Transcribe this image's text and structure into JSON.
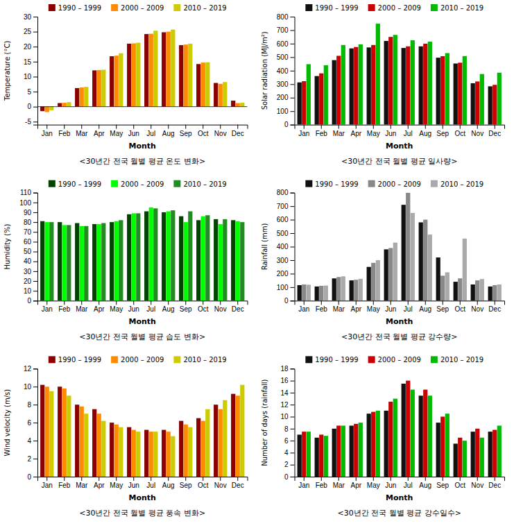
{
  "chart_data": [
    {
      "type": "bar",
      "title": "<30년간 전국 월별 평균 온도 변화>",
      "x_label": "Month",
      "y_label": "Temperature (°C)",
      "categories": [
        "Jan",
        "Feb",
        "Mar",
        "Apr",
        "May",
        "Jun",
        "Jul",
        "Aug",
        "Sep",
        "Oct",
        "Nov",
        "Dec"
      ],
      "series": [
        {
          "name": "1990 – 1999",
          "color": "#8B0000",
          "values": [
            -1.5,
            1.2,
            6.2,
            12.1,
            16.8,
            21.0,
            24.2,
            24.8,
            20.5,
            14.2,
            7.9,
            2.0
          ]
        },
        {
          "name": "2000 – 2009",
          "color": "#FF8C00",
          "values": [
            -1.8,
            1.3,
            6.4,
            12.2,
            17.0,
            21.1,
            24.3,
            25.0,
            20.7,
            14.7,
            7.6,
            1.2
          ]
        },
        {
          "name": "2010 – 2019",
          "color": "#CCCC00",
          "values": [
            -1.2,
            1.5,
            6.6,
            12.3,
            17.8,
            21.3,
            25.3,
            25.7,
            21.0,
            14.8,
            8.2,
            1.3
          ]
        }
      ],
      "ylim": [
        -6,
        30
      ],
      "yticks": [
        -5,
        0,
        5,
        10,
        15,
        20,
        25,
        30
      ],
      "grid": false,
      "legend": "top"
    },
    {
      "type": "bar",
      "title": "<30년간 전국 월별 평균 일사량>",
      "x_label": "Month",
      "y_label": "Solar radiation (MJ/m²)",
      "categories": [
        "Jan",
        "Feb",
        "Mar",
        "Apr",
        "May",
        "Jun",
        "Jul",
        "Aug",
        "Sep",
        "Oct",
        "Nov",
        "Dec"
      ],
      "series": [
        {
          "name": "1990 – 1999",
          "color": "#111111",
          "values": [
            313,
            360,
            478,
            565,
            572,
            620,
            568,
            580,
            496,
            453,
            307,
            284
          ]
        },
        {
          "name": "2000 – 2009",
          "color": "#CC0000",
          "values": [
            322,
            380,
            510,
            575,
            590,
            650,
            580,
            600,
            507,
            459,
            320,
            295
          ]
        },
        {
          "name": "2010 – 2019",
          "color": "#00BB00",
          "values": [
            448,
            440,
            590,
            595,
            748,
            665,
            625,
            615,
            530,
            508,
            375,
            385
          ]
        }
      ],
      "ylim": [
        0,
        800
      ],
      "yticks": [
        0,
        100,
        200,
        300,
        400,
        500,
        600,
        700,
        800
      ],
      "grid": false,
      "legend": "top"
    },
    {
      "type": "bar",
      "title": "<30년간 전국 월별 평균 습도 변화>",
      "x_label": "Month",
      "y_label": "Humidity (%)",
      "categories": [
        "Jan",
        "Feb",
        "Mar",
        "Apr",
        "May",
        "Jun",
        "Jul",
        "Aug",
        "Sep",
        "Oct",
        "Nov",
        "Dec"
      ],
      "series": [
        {
          "name": "1990 – 1999",
          "color": "#004400",
          "values": [
            81,
            80,
            79,
            78,
            80,
            88,
            91,
            90,
            86,
            82,
            83,
            82
          ]
        },
        {
          "name": "2000 – 2009",
          "color": "#00FF00",
          "values": [
            80,
            77,
            76,
            78,
            81,
            89,
            95,
            91,
            80,
            86,
            78,
            81
          ]
        },
        {
          "name": "2010 – 2019",
          "color": "#228B22",
          "values": [
            80,
            77,
            76,
            79,
            82,
            89,
            94,
            92,
            91,
            87,
            83,
            80
          ]
        }
      ],
      "ylim": [
        0,
        110
      ],
      "yticks": [
        0,
        10,
        20,
        30,
        40,
        50,
        60,
        70,
        80,
        90,
        100,
        110
      ],
      "grid": false,
      "legend": "top"
    },
    {
      "type": "bar",
      "title": "<30년간 전국 월별 평균 강수량>",
      "x_label": "Month",
      "y_label": "Rainfall (mm)",
      "categories": [
        "Jan",
        "Feb",
        "Mar",
        "Apr",
        "May",
        "Jun",
        "Jul",
        "Aug",
        "Sep",
        "Oct",
        "Nov",
        "Dec"
      ],
      "series": [
        {
          "name": "1990 – 1999",
          "color": "#111111",
          "values": [
            115,
            105,
            165,
            150,
            250,
            380,
            710,
            580,
            320,
            140,
            120,
            105
          ]
        },
        {
          "name": "2000 – 2009",
          "color": "#888888",
          "values": [
            120,
            110,
            175,
            155,
            280,
            390,
            800,
            600,
            185,
            165,
            150,
            115
          ]
        },
        {
          "name": "2010 – 2019",
          "color": "#AAAAAA",
          "values": [
            118,
            112,
            180,
            162,
            300,
            430,
            650,
            490,
            210,
            460,
            160,
            120
          ]
        }
      ],
      "ylim": [
        0,
        800
      ],
      "yticks": [
        0,
        100,
        200,
        300,
        400,
        500,
        600,
        700,
        800
      ],
      "grid": false,
      "legend": "top"
    },
    {
      "type": "bar",
      "title": "<30년간 전국 월별 평균 풍속 변화>",
      "x_label": "Month",
      "y_label": "Wind velocity (m/s)",
      "categories": [
        "Jan",
        "Feb",
        "Mar",
        "Apr",
        "May",
        "Jun",
        "Jul",
        "Aug",
        "Sep",
        "Oct",
        "Nov",
        "Dec"
      ],
      "series": [
        {
          "name": "1990 – 1999",
          "color": "#8B0000",
          "values": [
            10.2,
            10.0,
            8.0,
            7.5,
            6.0,
            5.5,
            5.2,
            5.2,
            6.2,
            6.5,
            8.0,
            9.2
          ]
        },
        {
          "name": "2000 – 2009",
          "color": "#FF8C00",
          "values": [
            10.0,
            9.8,
            7.8,
            7.0,
            5.8,
            5.2,
            5.0,
            5.0,
            5.8,
            6.2,
            7.5,
            9.0
          ]
        },
        {
          "name": "2010 – 2019",
          "color": "#CCCC00",
          "values": [
            9.5,
            9.0,
            7.0,
            6.2,
            5.5,
            5.0,
            5.0,
            4.5,
            5.5,
            7.5,
            8.5,
            10.2
          ]
        }
      ],
      "ylim": [
        0,
        12
      ],
      "yticks": [
        0,
        2,
        4,
        6,
        8,
        10,
        12
      ],
      "grid": false,
      "legend": "top"
    },
    {
      "type": "bar",
      "title": "<30년간 전국 월별 평균 강수일수>",
      "x_label": "Month",
      "y_label": "Number of days (rainfall)",
      "categories": [
        "Jan",
        "Feb",
        "Mar",
        "Apr",
        "May",
        "Jun",
        "Jul",
        "Aug",
        "Sep",
        "Oct",
        "Nov",
        "Dec"
      ],
      "series": [
        {
          "name": "1990 – 1999",
          "color": "#111111",
          "values": [
            7.0,
            6.5,
            8.0,
            8.5,
            10.5,
            11.0,
            15.5,
            13.5,
            9.0,
            5.5,
            7.5,
            7.5
          ]
        },
        {
          "name": "2000 – 2009",
          "color": "#CC0000",
          "values": [
            7.5,
            7.0,
            8.5,
            8.8,
            10.8,
            12.5,
            16.0,
            14.5,
            10.0,
            6.5,
            8.0,
            7.8
          ]
        },
        {
          "name": "2010 – 2019",
          "color": "#00BB00",
          "values": [
            7.5,
            6.8,
            8.5,
            9.0,
            11.0,
            13.0,
            14.5,
            13.5,
            10.5,
            6.0,
            6.5,
            8.5
          ]
        }
      ],
      "ylim": [
        0,
        18
      ],
      "yticks": [
        0,
        2,
        4,
        6,
        8,
        10,
        12,
        14,
        16,
        18
      ],
      "grid": false,
      "legend": "top"
    }
  ]
}
